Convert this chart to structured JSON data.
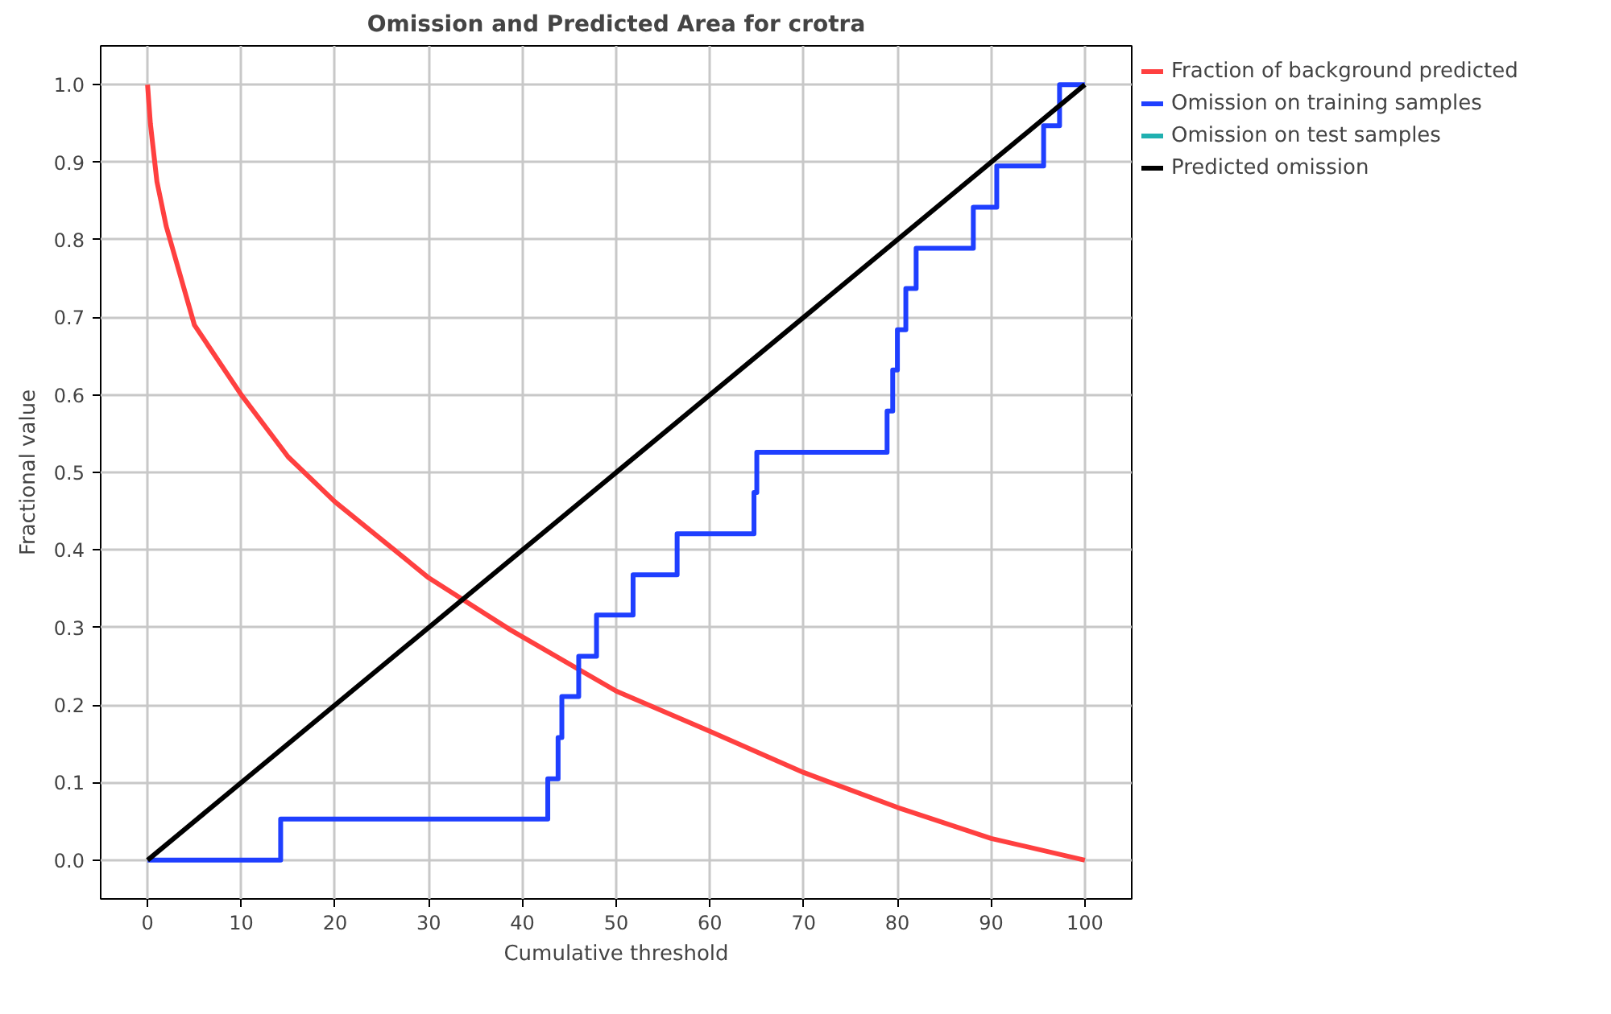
{
  "chart_data": {
    "type": "line",
    "title": "Omission and Predicted Area for crotra",
    "xlabel": "Cumulative threshold",
    "ylabel": "Fractional value",
    "xlim": [
      -5,
      105
    ],
    "ylim": [
      -0.05,
      1.05
    ],
    "xticks": [
      0,
      10,
      20,
      30,
      40,
      50,
      60,
      70,
      80,
      90,
      100
    ],
    "yticks": [
      {
        "value": 0,
        "label": "0.0"
      },
      {
        "value": 0.1,
        "label": "0.1"
      },
      {
        "value": 0.2,
        "label": "0.2"
      },
      {
        "value": 0.3,
        "label": "0.3"
      },
      {
        "value": 0.4,
        "label": "0.4"
      },
      {
        "value": 0.5,
        "label": "0.5"
      },
      {
        "value": 0.6,
        "label": "0.6"
      },
      {
        "value": 0.7,
        "label": "0.7"
      },
      {
        "value": 0.8,
        "label": "0.8"
      },
      {
        "value": 0.9,
        "label": "0.9"
      },
      {
        "value": 1,
        "label": "1.0"
      }
    ],
    "grid": true,
    "legend": "right",
    "series": [
      {
        "name": "Fraction of background predicted",
        "color": "#ff4040",
        "x": [
          0,
          0.3,
          1,
          2,
          5,
          10,
          15,
          20,
          30,
          38.7,
          50,
          60,
          70,
          80,
          90,
          100
        ],
        "values": [
          1.0,
          0.95,
          0.875,
          0.817,
          0.69,
          0.6,
          0.52,
          0.462,
          0.364,
          0.297,
          0.218,
          0.166,
          0.113,
          0.068,
          0.028,
          0.0
        ]
      },
      {
        "name": "Omission on training samples",
        "color": "#1f3fff",
        "type": "step",
        "x": [
          0,
          14.2,
          42.7,
          43.8,
          44.2,
          46.0,
          47.9,
          51.8,
          56.5,
          64.7,
          65.0,
          78.9,
          79.5,
          80.0,
          80.9,
          81.4,
          82.0,
          88.1,
          90.6,
          95.6,
          97.3,
          100
        ],
        "values": [
          0,
          0.053,
          0.105,
          0.158,
          0.211,
          0.263,
          0.316,
          0.368,
          0.421,
          0.474,
          0.526,
          0.579,
          0.632,
          0.684,
          0.737,
          0.737,
          0.789,
          0.842,
          0.895,
          0.947,
          1.0,
          1.0
        ]
      },
      {
        "name": "Omission on test samples",
        "color": "#20b0b0",
        "values": [
          null
        ]
      },
      {
        "name": "Predicted omission",
        "color": "#000000",
        "x": [
          0,
          100
        ],
        "values": [
          0,
          1
        ]
      }
    ]
  }
}
